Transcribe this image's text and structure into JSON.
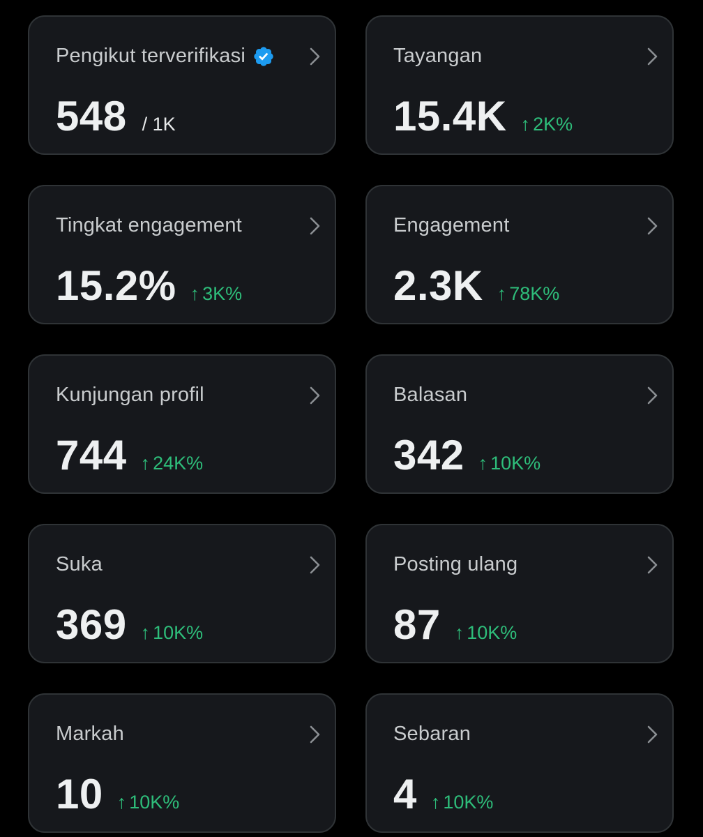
{
  "colors": {
    "background": "#000000",
    "card": "#16181c",
    "border": "#2f3336",
    "positive": "#2ebd7a",
    "verified": "#1d9bf0"
  },
  "cards": [
    {
      "title": "Pengikut terverifikasi",
      "value": "548",
      "sub": "/ 1K",
      "verified": true
    },
    {
      "title": "Tayangan",
      "value": "15.4K",
      "delta": "2K%"
    },
    {
      "title": "Tingkat engagement",
      "value": "15.2%",
      "delta": "3K%"
    },
    {
      "title": "Engagement",
      "value": "2.3K",
      "delta": "78K%"
    },
    {
      "title": "Kunjungan profil",
      "value": "744",
      "delta": "24K%"
    },
    {
      "title": "Balasan",
      "value": "342",
      "delta": "10K%"
    },
    {
      "title": "Suka",
      "value": "369",
      "delta": "10K%"
    },
    {
      "title": "Posting ulang",
      "value": "87",
      "delta": "10K%"
    },
    {
      "title": "Markah",
      "value": "10",
      "delta": "10K%"
    },
    {
      "title": "Sebaran",
      "value": "4",
      "delta": "10K%"
    }
  ],
  "icons": {
    "arrow_up": "↑",
    "chevron": "chevron-right-icon",
    "verified": "verified-badge-icon"
  }
}
